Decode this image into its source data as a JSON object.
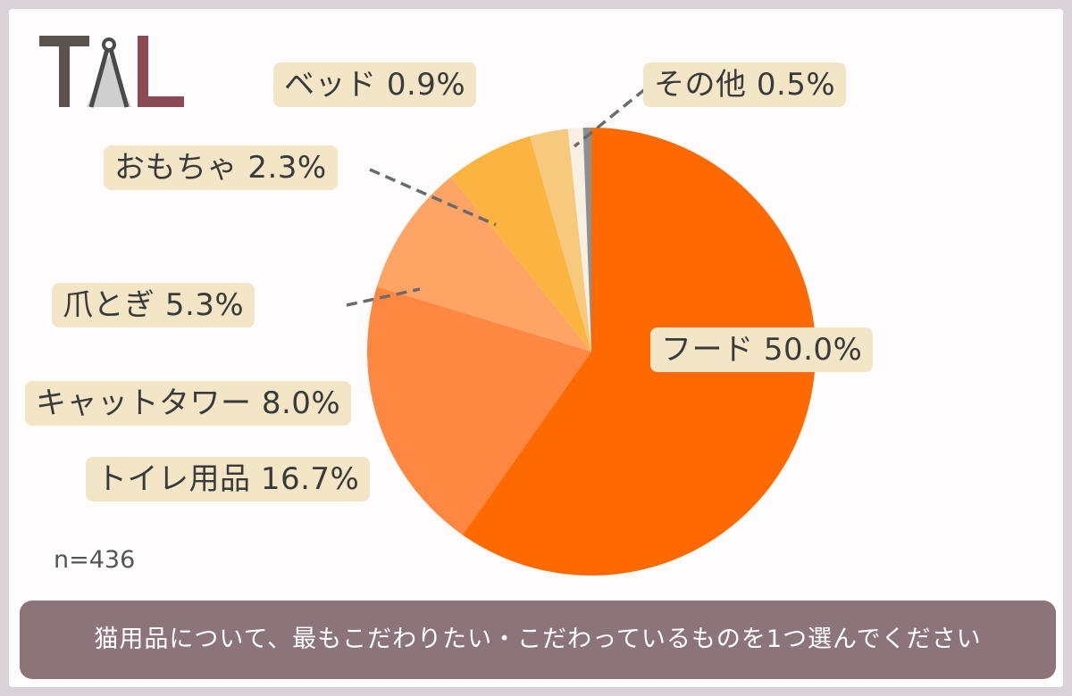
{
  "logo": {
    "text": "TAL"
  },
  "chart_data": {
    "type": "pie",
    "slices": [
      {
        "label": "フード",
        "value": 50.0,
        "value_label": "50.0%",
        "color": "#ff6a00"
      },
      {
        "label": "トイレ用品",
        "value": 16.7,
        "value_label": "16.7%",
        "color": "#fe8742"
      },
      {
        "label": "キャットタワー",
        "value": 8.0,
        "value_label": "8.0%",
        "color": "#fea566"
      },
      {
        "label": "爪とぎ",
        "value": 5.3,
        "value_label": "5.3%",
        "color": "#fbb440"
      },
      {
        "label": "おもちゃ",
        "value": 2.3,
        "value_label": "2.3%",
        "color": "#f7c97d"
      },
      {
        "label": "ベッド",
        "value": 0.9,
        "value_label": "0.9%",
        "color": "#f7efe2"
      },
      {
        "label": "その他",
        "value": 0.5,
        "value_label": "0.5%",
        "color": "#8f8f8f"
      }
    ]
  },
  "sample_size": "n=436",
  "question": "猫用品について、最もこだわりたい・こだわっているものを1つ選んでください"
}
